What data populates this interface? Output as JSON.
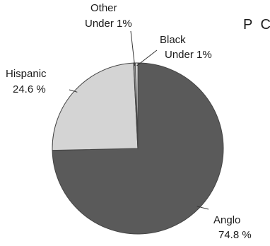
{
  "chart_data": {
    "type": "pie",
    "title": "P C",
    "slices": [
      {
        "name": "Anglo",
        "value": 74.8,
        "value_label": "74.8 %",
        "color": "#5a5a5a"
      },
      {
        "name": "Hispanic",
        "value": 24.6,
        "value_label": "24.6 %",
        "color": "#d4d4d4"
      },
      {
        "name": "Other",
        "value": 0.4,
        "value_label": "Under 1%",
        "color": "#8c8c8c"
      },
      {
        "name": "Black",
        "value": 0.4,
        "value_label": "Under 1%",
        "color": "#ffffff"
      }
    ],
    "stroke_color": "#444444",
    "legend": "none"
  }
}
